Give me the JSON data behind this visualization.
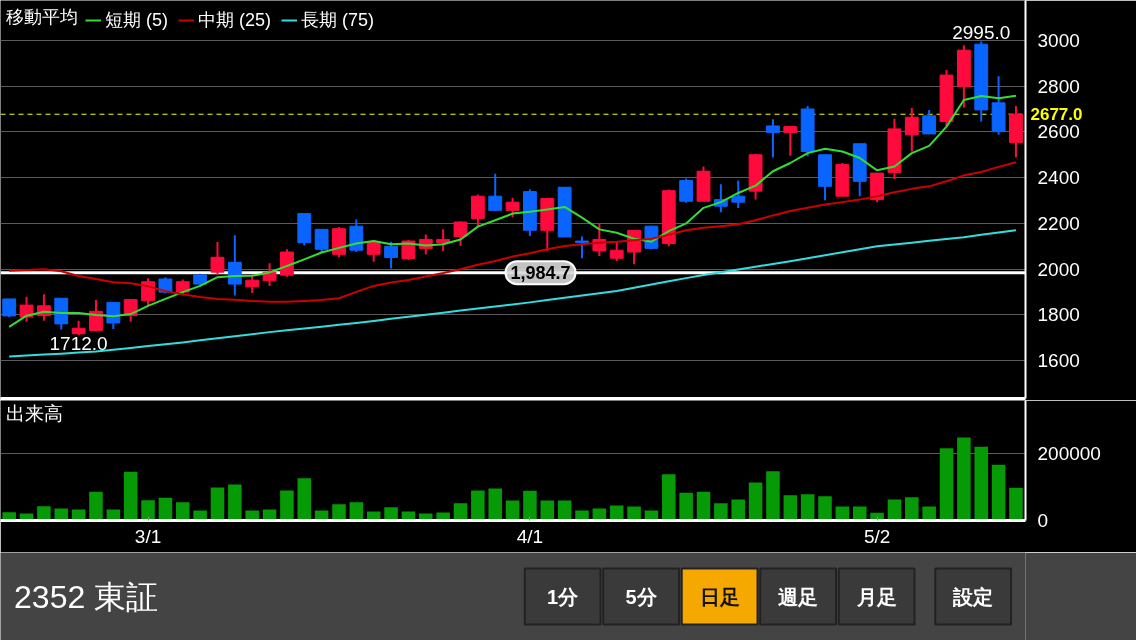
{
  "chart_data": [
    {
      "type": "candlestick",
      "legend_title": "移動平均",
      "legend": "top left",
      "grid": "y",
      "tick_labels": "y",
      "categories": [
        null,
        null,
        null,
        null,
        null,
        null,
        null,
        null,
        null,
        null,
        null,
        null,
        null,
        null,
        null,
        null,
        null,
        null,
        null,
        null,
        null,
        null,
        null,
        null,
        null,
        null,
        null,
        null,
        null,
        null,
        null,
        null,
        null,
        null,
        null,
        null,
        null,
        null,
        null,
        null,
        null,
        null,
        null,
        null,
        null,
        null,
        null,
        null,
        null,
        null,
        null,
        null,
        null,
        null,
        null,
        null,
        null,
        null,
        null
      ],
      "ylim": [
        1435,
        3174
      ],
      "yticks": [
        1600,
        1800,
        2000,
        2200,
        2400,
        2600,
        2800,
        3000
      ],
      "ohlc": [
        [
          1870,
          1870,
          1790,
          1796
        ],
        [
          1791,
          1880,
          1770,
          1843
        ],
        [
          1797,
          1891,
          1775,
          1840
        ],
        [
          1873,
          1873,
          1736,
          1761
        ],
        [
          1718,
          1775,
          1712,
          1742
        ],
        [
          1732,
          1865,
          1728,
          1816
        ],
        [
          1855,
          1855,
          1739,
          1765
        ],
        [
          1797,
          1870,
          1770,
          1867
        ],
        [
          1862,
          1960,
          1840,
          1945
        ],
        [
          1957,
          1965,
          1895,
          1900
        ],
        [
          1900,
          1955,
          1885,
          1945
        ],
        [
          1975,
          1980,
          1930,
          1935
        ],
        [
          1987,
          2119,
          1975,
          2052
        ],
        [
          2030,
          2148,
          1885,
          1935
        ],
        [
          1923,
          1970,
          1896,
          1952
        ],
        [
          1949,
          2026,
          1927,
          1987
        ],
        [
          1974,
          2087,
          1967,
          2075
        ],
        [
          2243,
          2243,
          2104,
          2116
        ],
        [
          2174,
          2174,
          2073,
          2087
        ],
        [
          2065,
          2184,
          2052,
          2177
        ],
        [
          2188,
          2217,
          2075,
          2083
        ],
        [
          2065,
          2123,
          2032,
          2119
        ],
        [
          2099,
          2120,
          2003,
          2051
        ],
        [
          2046,
          2128,
          2040,
          2123
        ],
        [
          2091,
          2152,
          2065,
          2130
        ],
        [
          2116,
          2174,
          2080,
          2130
        ],
        [
          2143,
          2210,
          2101,
          2206
        ],
        [
          2222,
          2326,
          2186,
          2319
        ],
        [
          2319,
          2417,
          2254,
          2257
        ],
        [
          2257,
          2312,
          2227,
          2293
        ],
        [
          2339,
          2348,
          2145,
          2170
        ],
        [
          2170,
          2312,
          2080,
          2309
        ],
        [
          2358,
          2358,
          2141,
          2141
        ],
        [
          2123,
          2143,
          2048,
          2116
        ],
        [
          2080,
          2200,
          2058,
          2130
        ],
        [
          2048,
          2119,
          2036,
          2083
        ],
        [
          2075,
          2170,
          2022,
          2170
        ],
        [
          2188,
          2190,
          2087,
          2091
        ],
        [
          2112,
          2348,
          2100,
          2343
        ],
        [
          2387,
          2396,
          2290,
          2297
        ],
        [
          2297,
          2449,
          2297,
          2428
        ],
        [
          2304,
          2371,
          2249,
          2275
        ],
        [
          2319,
          2387,
          2267,
          2293
        ],
        [
          2341,
          2504,
          2304,
          2500
        ],
        [
          2626,
          2655,
          2488,
          2597
        ],
        [
          2597,
          2626,
          2496,
          2623
        ],
        [
          2700,
          2713,
          2493,
          2514
        ],
        [
          2500,
          2500,
          2301,
          2362
        ],
        [
          2319,
          2464,
          2319,
          2457
        ],
        [
          2548,
          2548,
          2319,
          2384
        ],
        [
          2304,
          2420,
          2293,
          2420
        ],
        [
          2423,
          2657,
          2394,
          2613
        ],
        [
          2587,
          2704,
          2514,
          2664
        ],
        [
          2670,
          2696,
          2591,
          2591
        ],
        [
          2645,
          2870,
          2623,
          2848
        ],
        [
          2797,
          2978,
          2706,
          2957
        ],
        [
          2983,
          2995,
          2645,
          2696
        ],
        [
          2727,
          2843,
          2587,
          2601
        ],
        [
          2554,
          2713,
          2488,
          2677
        ]
      ],
      "colors": [
        "#0a64ff",
        "#ff0a3c",
        "#ff0a3c",
        "#0a64ff",
        "#ff0a3c",
        "#ff0a3c",
        "#0a64ff",
        "#ff0a3c",
        "#ff0a3c",
        "#0a64ff",
        "#ff0a3c",
        "#0a64ff",
        "#ff0a3c",
        "#0a64ff",
        "#ff0a3c",
        "#ff0a3c",
        "#ff0a3c",
        "#0a64ff",
        "#0a64ff",
        "#ff0a3c",
        "#0a64ff",
        "#ff0a3c",
        "#0a64ff",
        "#ff0a3c",
        "#ff0a3c",
        "#ff0a3c",
        "#ff0a3c",
        "#ff0a3c",
        "#0a64ff",
        "#ff0a3c",
        "#0a64ff",
        "#ff0a3c",
        "#0a64ff",
        "#0a64ff",
        "#ff0a3c",
        "#ff0a3c",
        "#ff0a3c",
        "#0a64ff",
        "#ff0a3c",
        "#0a64ff",
        "#ff0a3c",
        "#0a64ff",
        "#0a64ff",
        "#ff0a3c",
        "#0a64ff",
        "#ff0a3c",
        "#0a64ff",
        "#0a64ff",
        "#ff0a3c",
        "#0a64ff",
        "#ff0a3c",
        "#ff0a3c",
        "#ff0a3c",
        "#0a64ff",
        "#ff0a3c",
        "#ff0a3c",
        "#0a64ff",
        "#0a64ff",
        "#ff0a3c"
      ],
      "series": [
        {
          "name": "短期 (5)",
          "type": "line",
          "color": "#33dd33",
          "values": [
            1748,
            1797,
            1814,
            1809,
            1809,
            1800,
            1794,
            1804,
            1840,
            1870,
            1900,
            1927,
            1965,
            1970,
            1971,
            1986,
            2014,
            2043,
            2073,
            2093,
            2112,
            2123,
            2109,
            2112,
            2104,
            2109,
            2130,
            2186,
            2214,
            2243,
            2251,
            2261,
            2272,
            2225,
            2174,
            2159,
            2133,
            2120,
            2166,
            2200,
            2268,
            2293,
            2333,
            2365,
            2428,
            2464,
            2507,
            2526,
            2514,
            2486,
            2432,
            2449,
            2507,
            2539,
            2623,
            2739,
            2757,
            2747,
            2758
          ]
        },
        {
          "name": "中期 (25)",
          "type": "line",
          "color": "#cc0000",
          "values": [
            1993,
            1996,
            2000,
            1991,
            1970,
            1957,
            1943,
            1939,
            1925,
            1905,
            1890,
            1878,
            1870,
            1867,
            1861,
            1858,
            1858,
            1861,
            1865,
            1873,
            1901,
            1927,
            1942,
            1953,
            1968,
            1983,
            2000,
            2019,
            2036,
            2055,
            2070,
            2087,
            2101,
            2109,
            2116,
            2120,
            2126,
            2133,
            2150,
            2170,
            2181,
            2188,
            2196,
            2214,
            2235,
            2254,
            2268,
            2283,
            2293,
            2304,
            2319,
            2336,
            2351,
            2362,
            2384,
            2410,
            2425,
            2447,
            2467
          ]
        },
        {
          "name": "長期 (75)",
          "type": "line",
          "color": "#33dddd",
          "values": [
            1619,
            1623,
            1627,
            1631,
            1636,
            1640,
            1648,
            1656,
            1664,
            1672,
            1680,
            1689,
            1698,
            1707,
            1716,
            1725,
            1733,
            1741,
            1749,
            1757,
            1765,
            1774,
            1783,
            1792,
            1801,
            1810,
            1819,
            1828,
            1837,
            1846,
            1855,
            1865,
            1875,
            1885,
            1895,
            1905,
            1919,
            1933,
            1947,
            1961,
            1975,
            1987,
            1999,
            2011,
            2023,
            2035,
            2048,
            2061,
            2074,
            2087,
            2100,
            2108,
            2116,
            2124,
            2132,
            2140,
            2150,
            2160,
            2170
          ]
        }
      ],
      "ref_lines": [
        {
          "axis": "y",
          "value": 2677,
          "label": "2677.0",
          "color": "#ffff00",
          "line_style": "dashed"
        },
        {
          "axis": "y",
          "value": 1984.7,
          "label": "1,984.7",
          "color": "#ffffff",
          "line_style": "solid"
        }
      ],
      "annotations": [
        {
          "text": "2995.0",
          "y": 2995
        },
        {
          "text": "1712.0",
          "y": 1712
        }
      ]
    },
    {
      "type": "bar",
      "title": "出来高",
      "grid": "y",
      "color": "#069a06",
      "categories": [
        null,
        null,
        null,
        null,
        null,
        null,
        null,
        null,
        "3/1",
        null,
        null,
        null,
        null,
        null,
        null,
        null,
        null,
        null,
        null,
        null,
        null,
        null,
        null,
        null,
        null,
        null,
        null,
        null,
        null,
        null,
        "4/1",
        null,
        null,
        null,
        null,
        null,
        null,
        null,
        null,
        null,
        null,
        null,
        null,
        null,
        null,
        null,
        null,
        null,
        null,
        null,
        "5/2",
        null,
        null,
        null,
        null,
        null,
        null,
        null,
        null
      ],
      "ylim": [
        0,
        360000
      ],
      "yticks": [
        0,
        200000
      ],
      "values": [
        25000,
        21000,
        43000,
        36000,
        33000,
        86000,
        33000,
        146000,
        61000,
        68000,
        55000,
        30000,
        99000,
        108000,
        30000,
        33000,
        90000,
        127000,
        30000,
        49000,
        55000,
        27000,
        40000,
        27000,
        21000,
        24000,
        52000,
        90000,
        96000,
        60000,
        89000,
        60000,
        60000,
        30000,
        36000,
        45000,
        42000,
        30000,
        139000,
        83000,
        86000,
        52000,
        63000,
        114000,
        148000,
        76000,
        79000,
        73000,
        42000,
        42000,
        23000,
        63000,
        70000,
        42000,
        217000,
        249000,
        221000,
        167000,
        98000
      ]
    },
    {
      "type": "other",
      "title": "2352 東証",
      "annotations": [
        "1分",
        "5分",
        "日足",
        "週足",
        "月足",
        "設定"
      ],
      "colors": [
        "#3a3a3a",
        "#3a3a3a",
        "#f5a800",
        "#3a3a3a",
        "#3a3a3a",
        "#3a3a3a"
      ]
    }
  ]
}
